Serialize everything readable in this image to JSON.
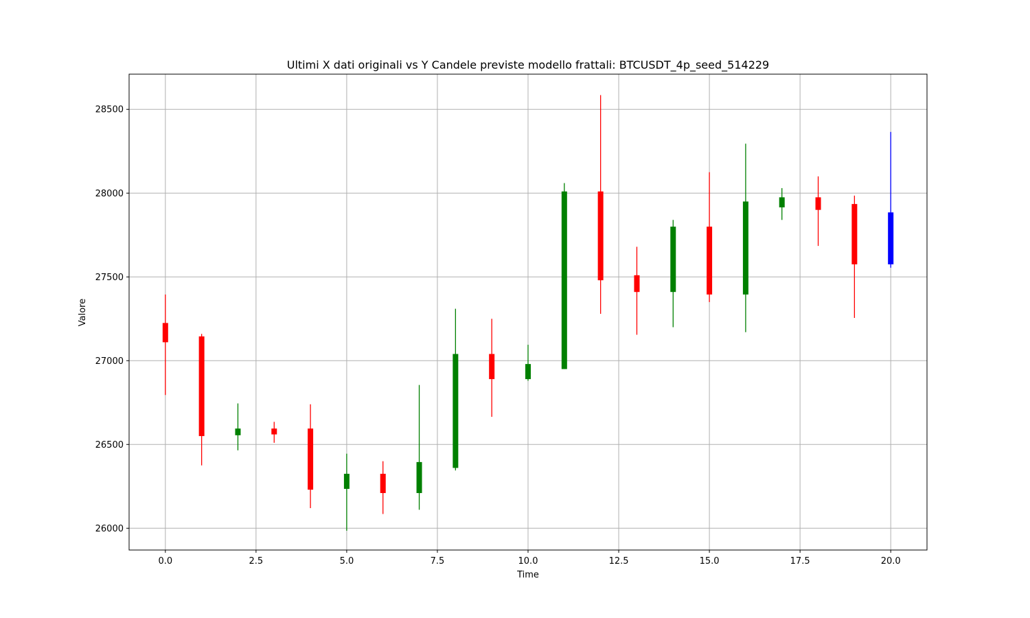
{
  "chart_data": {
    "type": "candlestick",
    "title": "Ultimi X dati originali vs Y Candele previste modello frattali: BTCUSDT_4p_seed_514229",
    "xlabel": "Time",
    "ylabel": "Valore",
    "xlim": [
      -1,
      21
    ],
    "ylim": [
      25870,
      28710
    ],
    "grid": true,
    "x_ticks": [
      0,
      2.5,
      5,
      7.5,
      10,
      12.5,
      15,
      17.5,
      20
    ],
    "x_tick_labels": [
      "0.0",
      "2.5",
      "5.0",
      "7.5",
      "10.0",
      "12.5",
      "15.0",
      "17.5",
      "20.0"
    ],
    "y_ticks": [
      26000,
      26500,
      27000,
      27500,
      28000,
      28500
    ],
    "y_tick_labels": [
      "26000",
      "26500",
      "27000",
      "27500",
      "28000",
      "28500"
    ],
    "colors": {
      "up": "#008000",
      "down": "#ff0000",
      "predicted": "#0000ff",
      "grid": "#b0b0b0"
    },
    "candles": [
      {
        "x": 0,
        "open": 27225,
        "high": 27395,
        "low": 26795,
        "close": 27110,
        "kind": "down"
      },
      {
        "x": 1,
        "open": 27145,
        "high": 27160,
        "low": 26375,
        "close": 26550,
        "kind": "down"
      },
      {
        "x": 2,
        "open": 26555,
        "high": 26745,
        "low": 26465,
        "close": 26595,
        "kind": "up"
      },
      {
        "x": 3,
        "open": 26595,
        "high": 26635,
        "low": 26510,
        "close": 26560,
        "kind": "down"
      },
      {
        "x": 4,
        "open": 26595,
        "high": 26740,
        "low": 26120,
        "close": 26230,
        "kind": "down"
      },
      {
        "x": 5,
        "open": 26235,
        "high": 26445,
        "low": 25985,
        "close": 26325,
        "kind": "up"
      },
      {
        "x": 6,
        "open": 26325,
        "high": 26400,
        "low": 26085,
        "close": 26210,
        "kind": "down"
      },
      {
        "x": 7,
        "open": 26210,
        "high": 26855,
        "low": 26110,
        "close": 26395,
        "kind": "up"
      },
      {
        "x": 8,
        "open": 26360,
        "high": 27310,
        "low": 26345,
        "close": 27040,
        "kind": "up"
      },
      {
        "x": 9,
        "open": 27040,
        "high": 27250,
        "low": 26665,
        "close": 26890,
        "kind": "down"
      },
      {
        "x": 10,
        "open": 26890,
        "high": 27095,
        "low": 26880,
        "close": 26980,
        "kind": "up"
      },
      {
        "x": 11,
        "open": 26950,
        "high": 28060,
        "low": 26950,
        "close": 28010,
        "kind": "up"
      },
      {
        "x": 12,
        "open": 28010,
        "high": 28585,
        "low": 27280,
        "close": 27480,
        "kind": "down"
      },
      {
        "x": 13,
        "open": 27510,
        "high": 27680,
        "low": 27155,
        "close": 27410,
        "kind": "down"
      },
      {
        "x": 14,
        "open": 27410,
        "high": 27840,
        "low": 27200,
        "close": 27800,
        "kind": "up"
      },
      {
        "x": 15,
        "open": 27800,
        "high": 28125,
        "low": 27350,
        "close": 27395,
        "kind": "down"
      },
      {
        "x": 16,
        "open": 27395,
        "high": 28295,
        "low": 27170,
        "close": 27950,
        "kind": "up"
      },
      {
        "x": 17,
        "open": 27915,
        "high": 28030,
        "low": 27840,
        "close": 27975,
        "kind": "up"
      },
      {
        "x": 18,
        "open": 27975,
        "high": 28100,
        "low": 27685,
        "close": 27900,
        "kind": "down"
      },
      {
        "x": 19,
        "open": 27935,
        "high": 27985,
        "low": 27255,
        "close": 27575,
        "kind": "down"
      },
      {
        "x": 20,
        "open": 27885,
        "high": 28365,
        "low": 27555,
        "close": 27575,
        "kind": "predicted"
      }
    ]
  }
}
